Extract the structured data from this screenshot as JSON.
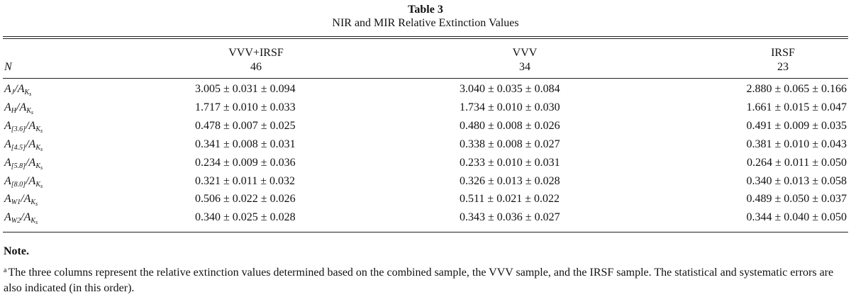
{
  "table": {
    "label": "Table 3",
    "title": "NIR and MIR Relative Extinction Values",
    "row_header": "N",
    "columns": [
      {
        "name": "VVV+IRSF",
        "n": "46"
      },
      {
        "name": "VVV",
        "n": "34"
      },
      {
        "name": "IRSF",
        "n": "23"
      }
    ],
    "rows": [
      {
        "num": "A",
        "num_sub": "J",
        "den": "A",
        "den_sub": "K",
        "den_subsub": "s",
        "values": [
          "3.005 ± 0.031 ± 0.094",
          "3.040 ± 0.035 ± 0.084",
          "2.880 ± 0.065 ± 0.166"
        ]
      },
      {
        "num": "A",
        "num_sub": "H",
        "den": "A",
        "den_sub": "K",
        "den_subsub": "s",
        "values": [
          "1.717 ± 0.010 ± 0.033",
          "1.734 ± 0.010 ± 0.030",
          "1.661 ± 0.015 ± 0.047"
        ]
      },
      {
        "num": "A",
        "num_sub": "[3.6]",
        "den": "A",
        "den_sub": "K",
        "den_subsub": "s",
        "values": [
          "0.478 ± 0.007 ± 0.025",
          "0.480 ± 0.008 ± 0.026",
          "0.491 ± 0.009 ± 0.035"
        ]
      },
      {
        "num": "A",
        "num_sub": "[4.5]",
        "den": "A",
        "den_sub": "K",
        "den_subsub": "s",
        "values": [
          "0.341 ± 0.008 ± 0.031",
          "0.338 ± 0.008 ± 0.027",
          "0.381 ± 0.010 ± 0.043"
        ]
      },
      {
        "num": "A",
        "num_sub": "[5.8]",
        "den": "A",
        "den_sub": "K",
        "den_subsub": "s",
        "values": [
          "0.234 ± 0.009 ± 0.036",
          "0.233 ± 0.010 ± 0.031",
          "0.264 ± 0.011 ± 0.050"
        ]
      },
      {
        "num": "A",
        "num_sub": "[8.0]",
        "den": "A",
        "den_sub": "K",
        "den_subsub": "s",
        "values": [
          "0.321 ± 0.011 ± 0.032",
          "0.326 ± 0.013 ± 0.028",
          "0.340 ± 0.013 ± 0.058"
        ]
      },
      {
        "num": "A",
        "num_sub": "W1",
        "den": "A",
        "den_sub": "K",
        "den_subsub": "s",
        "values": [
          "0.506 ± 0.022 ± 0.026",
          "0.511 ± 0.021 ± 0.022",
          "0.489 ± 0.050 ± 0.037"
        ]
      },
      {
        "num": "A",
        "num_sub": "W2",
        "den": "A",
        "den_sub": "K",
        "den_subsub": "s",
        "values": [
          "0.340 ± 0.025 ± 0.028",
          "0.343 ± 0.036 ± 0.027",
          "0.344 ± 0.040 ± 0.050"
        ]
      }
    ]
  },
  "note": {
    "heading": "Note.",
    "marker": "a",
    "text": "The three columns represent the relative extinction values determined based on the combined sample, the VVV sample, and the IRSF sample. The statistical and systematic errors are also indicated (in this order)."
  }
}
